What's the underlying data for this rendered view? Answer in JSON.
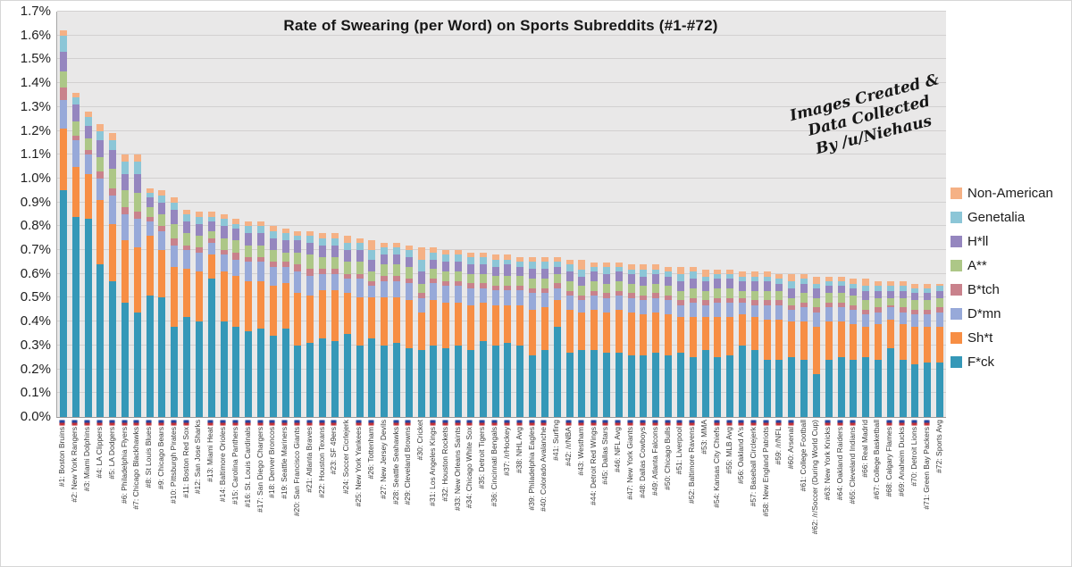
{
  "watermark": {
    "line1": "Images Created &",
    "line2": "Data Collected",
    "line3": "By /u/Niehaus"
  },
  "chart_data": {
    "type": "bar",
    "subtype": "stacked-vertical",
    "title": "Rate of Swearing (per Word) on Sports Subreddits (#1-#72)",
    "xlabel": "",
    "ylabel": "",
    "units": "percent of words",
    "ylim": [
      0,
      1.7
    ],
    "y_ticks": [
      "0.0%",
      "0.1%",
      "0.2%",
      "0.3%",
      "0.4%",
      "0.5%",
      "0.6%",
      "0.7%",
      "0.8%",
      "0.9%",
      "1.0%",
      "1.1%",
      "1.2%",
      "1.3%",
      "1.4%",
      "1.5%",
      "1.6%",
      "1.7%"
    ],
    "grid": true,
    "legend_position": "right",
    "plot_bg": "#e9e8e8",
    "grid_color": "#d2d0d0",
    "stack_order_bottom_to_top": [
      "F*ck",
      "Sh*t",
      "D*mn",
      "B*tch",
      "A**",
      "H*ll",
      "Genetalia",
      "Non-American"
    ],
    "categories": [
      "#1: Boston Bruins",
      "#2: New York Rangers",
      "#3: Miami Dolphins",
      "#4: LA Clippers",
      "#5: LA Dodgers",
      "#6: Philadelphia Flyers",
      "#7: Chicago Blackhawks",
      "#8: St Louis Blues",
      "#9: Chicago Bears",
      "#10: Pittsburgh Pirates",
      "#11: Boston Red Sox",
      "#12: San Jose Sharks",
      "#13: Miami Heat",
      "#14: Baltimore Orioles",
      "#15: Carolina Panthers",
      "#16: St. Louis Cardinals",
      "#17: San Diego Chargers",
      "#18: Denver Broncos",
      "#19: Seattle Mariners",
      "#20: San Francisco Giants",
      "#21: Atlanta Braves",
      "#22: Houston Texans",
      "#23: SF 49ers",
      "#24: Soccer Cicrlejerk",
      "#25: New York Yankees",
      "#26: Tottenham",
      "#27: New Jersey Devils",
      "#28: Seattle Seahawks",
      "#29: Cleveland Browns",
      "#30: Cricket",
      "#31: Los Angeles Kings",
      "#32: Houston Rockets",
      "#33: New Orleans Saints",
      "#34: Chicago White Sox",
      "#35: Detroit Tigers",
      "#36: Cincinnati Bengals",
      "#37: /r/Hockey",
      "#38: NHL Avg",
      "#39: Philadelphia Eagles",
      "#40: Colorado Avalanche",
      "#41: Surfing",
      "#42: /r/NBA",
      "#43: Westham",
      "#44: Detroit Red Wings",
      "#45: Dallas Stars",
      "#46: NFL Avg",
      "#47: New York Giants",
      "#48: Dallas Cowboys",
      "#49: Atlanta Falcons",
      "#50: Chicago Bulls",
      "#51: Liverpool",
      "#52: Baltimore Ravens",
      "#53: MMA",
      "#54: Kansas City Chiefs",
      "#55: MLB Avg",
      "#56: Oakland A's",
      "#57: Baseball Circlejerk",
      "#58: New England Patriots",
      "#59: /r/NFL",
      "#60: Arsenal",
      "#61: College Football",
      "#62: /r/Soccer (During World Cup)",
      "#63: New York Knicks",
      "#64: Oakland Raiders",
      "#65: Cleveland Indians",
      "#66: Real Madrid",
      "#67: College Basketball",
      "#68: Calgary Flames",
      "#69: Anaheim Ducks",
      "#70: Detroit Lions",
      "#71: Green Bay Packers",
      "#72: Sports Avg"
    ],
    "category_has_logo": [
      true,
      true,
      true,
      true,
      true,
      true,
      true,
      true,
      true,
      true,
      true,
      false,
      true,
      true,
      true,
      true,
      true,
      true,
      true,
      true,
      true,
      true,
      true,
      false,
      true,
      true,
      false,
      true,
      true,
      false,
      true,
      true,
      true,
      true,
      true,
      true,
      true,
      true,
      true,
      true,
      false,
      true,
      true,
      true,
      true,
      true,
      true,
      true,
      true,
      true,
      true,
      true,
      false,
      true,
      true,
      true,
      true,
      true,
      true,
      true,
      false,
      false,
      true,
      true,
      true,
      false,
      false,
      true,
      true,
      true,
      true,
      false
    ],
    "series": [
      {
        "name": "F*ck",
        "color": "#3598b8",
        "values": [
          0.95,
          0.84,
          0.83,
          0.64,
          0.57,
          0.48,
          0.44,
          0.51,
          0.5,
          0.38,
          0.42,
          0.4,
          0.58,
          0.4,
          0.38,
          0.36,
          0.37,
          0.34,
          0.37,
          0.3,
          0.31,
          0.33,
          0.32,
          0.35,
          0.3,
          0.33,
          0.3,
          0.31,
          0.29,
          0.28,
          0.3,
          0.29,
          0.3,
          0.28,
          0.32,
          0.3,
          0.31,
          0.3,
          0.26,
          0.28,
          0.38,
          0.27,
          0.28,
          0.28,
          0.27,
          0.27,
          0.26,
          0.26,
          0.27,
          0.26,
          0.27,
          0.25,
          0.28,
          0.25,
          0.26,
          0.3,
          0.28,
          0.24,
          0.24,
          0.25,
          0.24,
          0.18,
          0.24,
          0.25,
          0.24,
          0.25,
          0.24,
          0.29,
          0.24,
          0.22,
          0.23,
          0.23
        ]
      },
      {
        "name": "Sh*t",
        "color": "#f78e44",
        "values": [
          0.26,
          0.21,
          0.19,
          0.27,
          0.24,
          0.26,
          0.27,
          0.25,
          0.2,
          0.25,
          0.2,
          0.21,
          0.1,
          0.21,
          0.21,
          0.21,
          0.2,
          0.21,
          0.19,
          0.22,
          0.2,
          0.2,
          0.21,
          0.17,
          0.2,
          0.17,
          0.2,
          0.19,
          0.2,
          0.16,
          0.19,
          0.19,
          0.18,
          0.19,
          0.16,
          0.17,
          0.16,
          0.17,
          0.19,
          0.18,
          0.11,
          0.18,
          0.16,
          0.17,
          0.17,
          0.18,
          0.18,
          0.17,
          0.17,
          0.17,
          0.15,
          0.17,
          0.14,
          0.17,
          0.16,
          0.13,
          0.14,
          0.17,
          0.17,
          0.15,
          0.16,
          0.2,
          0.16,
          0.15,
          0.15,
          0.13,
          0.15,
          0.12,
          0.15,
          0.16,
          0.15,
          0.15
        ]
      },
      {
        "name": "D*mn",
        "color": "#97a9d9",
        "values": [
          0.12,
          0.11,
          0.08,
          0.09,
          0.12,
          0.11,
          0.12,
          0.06,
          0.08,
          0.09,
          0.08,
          0.08,
          0.05,
          0.07,
          0.07,
          0.08,
          0.08,
          0.08,
          0.07,
          0.09,
          0.08,
          0.07,
          0.07,
          0.06,
          0.08,
          0.05,
          0.07,
          0.07,
          0.07,
          0.06,
          0.07,
          0.07,
          0.07,
          0.07,
          0.06,
          0.06,
          0.06,
          0.06,
          0.07,
          0.06,
          0.05,
          0.06,
          0.05,
          0.06,
          0.06,
          0.06,
          0.06,
          0.06,
          0.06,
          0.06,
          0.05,
          0.06,
          0.05,
          0.06,
          0.06,
          0.05,
          0.05,
          0.06,
          0.06,
          0.05,
          0.06,
          0.06,
          0.06,
          0.06,
          0.06,
          0.05,
          0.05,
          0.05,
          0.05,
          0.05,
          0.05,
          0.06
        ]
      },
      {
        "name": "B*tch",
        "color": "#c9828c",
        "values": [
          0.05,
          0.02,
          0.02,
          0.03,
          0.03,
          0.03,
          0.03,
          0.02,
          0.02,
          0.03,
          0.02,
          0.02,
          0.02,
          0.02,
          0.03,
          0.02,
          0.02,
          0.02,
          0.02,
          0.03,
          0.03,
          0.02,
          0.02,
          0.02,
          0.02,
          0.02,
          0.02,
          0.02,
          0.02,
          0.02,
          0.02,
          0.02,
          0.02,
          0.02,
          0.02,
          0.02,
          0.02,
          0.02,
          0.02,
          0.02,
          0.02,
          0.02,
          0.02,
          0.02,
          0.02,
          0.02,
          0.02,
          0.02,
          0.02,
          0.02,
          0.02,
          0.02,
          0.02,
          0.02,
          0.02,
          0.02,
          0.02,
          0.02,
          0.02,
          0.02,
          0.02,
          0.02,
          0.02,
          0.02,
          0.02,
          0.02,
          0.02,
          0.01,
          0.02,
          0.02,
          0.02,
          0.02
        ]
      },
      {
        "name": "A**",
        "color": "#adc787",
        "values": [
          0.07,
          0.06,
          0.05,
          0.06,
          0.08,
          0.07,
          0.08,
          0.04,
          0.05,
          0.06,
          0.05,
          0.05,
          0.03,
          0.05,
          0.05,
          0.05,
          0.05,
          0.05,
          0.04,
          0.05,
          0.06,
          0.05,
          0.05,
          0.05,
          0.05,
          0.04,
          0.05,
          0.05,
          0.05,
          0.04,
          0.04,
          0.04,
          0.04,
          0.04,
          0.04,
          0.04,
          0.04,
          0.04,
          0.04,
          0.04,
          0.04,
          0.04,
          0.04,
          0.04,
          0.04,
          0.04,
          0.04,
          0.04,
          0.04,
          0.04,
          0.04,
          0.04,
          0.04,
          0.04,
          0.04,
          0.03,
          0.04,
          0.04,
          0.04,
          0.03,
          0.04,
          0.04,
          0.04,
          0.04,
          0.04,
          0.04,
          0.04,
          0.03,
          0.04,
          0.04,
          0.04,
          0.04
        ]
      },
      {
        "name": "H*ll",
        "color": "#9586bf",
        "values": [
          0.08,
          0.07,
          0.05,
          0.07,
          0.08,
          0.07,
          0.08,
          0.04,
          0.05,
          0.06,
          0.05,
          0.05,
          0.04,
          0.05,
          0.05,
          0.05,
          0.05,
          0.05,
          0.05,
          0.05,
          0.05,
          0.05,
          0.05,
          0.05,
          0.05,
          0.05,
          0.04,
          0.04,
          0.04,
          0.05,
          0.04,
          0.04,
          0.04,
          0.04,
          0.04,
          0.04,
          0.05,
          0.04,
          0.04,
          0.04,
          0.03,
          0.04,
          0.04,
          0.04,
          0.04,
          0.04,
          0.04,
          0.04,
          0.04,
          0.04,
          0.04,
          0.04,
          0.04,
          0.04,
          0.04,
          0.04,
          0.04,
          0.04,
          0.03,
          0.04,
          0.04,
          0.04,
          0.03,
          0.03,
          0.03,
          0.04,
          0.03,
          0.03,
          0.03,
          0.03,
          0.03,
          0.03
        ]
      },
      {
        "name": "Genetalia",
        "color": "#8cc6d7",
        "values": [
          0.07,
          0.03,
          0.04,
          0.04,
          0.04,
          0.05,
          0.05,
          0.02,
          0.03,
          0.03,
          0.03,
          0.03,
          0.02,
          0.03,
          0.02,
          0.03,
          0.03,
          0.03,
          0.03,
          0.02,
          0.03,
          0.03,
          0.03,
          0.03,
          0.03,
          0.04,
          0.03,
          0.03,
          0.03,
          0.05,
          0.03,
          0.03,
          0.03,
          0.03,
          0.03,
          0.03,
          0.02,
          0.02,
          0.03,
          0.03,
          0.02,
          0.03,
          0.03,
          0.02,
          0.03,
          0.02,
          0.02,
          0.03,
          0.02,
          0.02,
          0.03,
          0.03,
          0.02,
          0.02,
          0.02,
          0.02,
          0.02,
          0.02,
          0.02,
          0.03,
          0.02,
          0.02,
          0.02,
          0.02,
          0.02,
          0.02,
          0.02,
          0.02,
          0.02,
          0.02,
          0.02,
          0.02
        ]
      },
      {
        "name": "Non-American",
        "color": "#f5b185",
        "values": [
          0.02,
          0.02,
          0.02,
          0.03,
          0.03,
          0.03,
          0.03,
          0.02,
          0.02,
          0.02,
          0.02,
          0.02,
          0.02,
          0.02,
          0.02,
          0.02,
          0.02,
          0.02,
          0.02,
          0.02,
          0.02,
          0.02,
          0.02,
          0.03,
          0.02,
          0.04,
          0.02,
          0.02,
          0.02,
          0.05,
          0.02,
          0.02,
          0.02,
          0.02,
          0.02,
          0.02,
          0.02,
          0.02,
          0.02,
          0.02,
          0.02,
          0.02,
          0.04,
          0.02,
          0.02,
          0.02,
          0.02,
          0.02,
          0.02,
          0.02,
          0.03,
          0.02,
          0.03,
          0.02,
          0.02,
          0.02,
          0.02,
          0.02,
          0.02,
          0.03,
          0.02,
          0.03,
          0.02,
          0.02,
          0.02,
          0.03,
          0.02,
          0.02,
          0.02,
          0.02,
          0.02,
          0.01
        ]
      }
    ]
  }
}
